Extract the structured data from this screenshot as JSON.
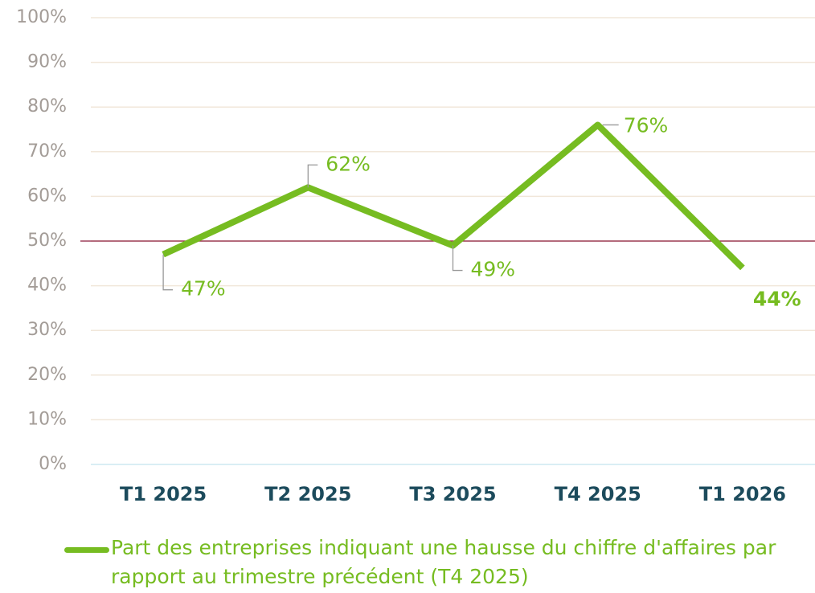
{
  "chart_data": {
    "type": "line",
    "categories": [
      "T1 2025",
      "T2 2025",
      "T3 2025",
      "T4 2025",
      "T1 2026"
    ],
    "series": [
      {
        "name": "Part des entreprises indiquant une hausse du chiffre d'affaires par rapport au trimestre précédent (T4 2025)",
        "color": "#76bc21",
        "values": [
          47,
          62,
          49,
          76,
          44
        ],
        "value_labels": [
          "47%",
          "62%",
          "49%",
          "76%",
          "44%"
        ]
      }
    ],
    "ylim": [
      0,
      100
    ],
    "yticks": [
      {
        "value": 0,
        "label": "0%"
      },
      {
        "value": 10,
        "label": "10%"
      },
      {
        "value": 20,
        "label": "20%"
      },
      {
        "value": 30,
        "label": "30%"
      },
      {
        "value": 40,
        "label": "40%"
      },
      {
        "value": 50,
        "label": "50%"
      },
      {
        "value": 60,
        "label": "60%"
      },
      {
        "value": 70,
        "label": "70%"
      },
      {
        "value": 80,
        "label": "80%"
      },
      {
        "value": 90,
        "label": "90%"
      },
      {
        "value": 100,
        "label": "100%"
      }
    ],
    "grid": true,
    "reference_line": {
      "value": 50,
      "color": "#8b1a3a"
    }
  }
}
